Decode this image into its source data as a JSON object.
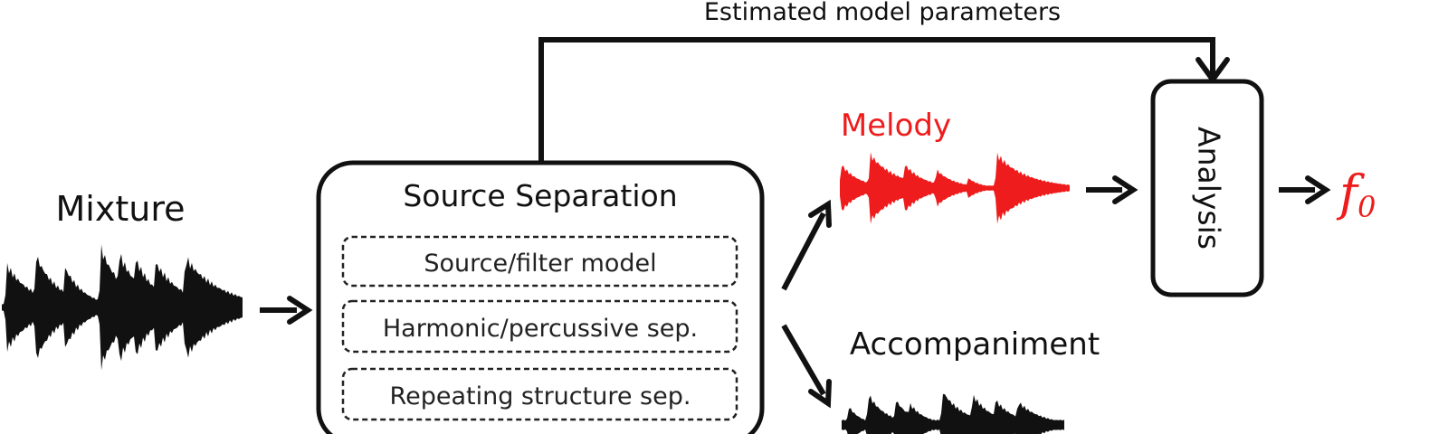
{
  "labels": {
    "estimated_params": "Estimated model parameters",
    "mixture": "Mixture",
    "source_separation": "Source Separation",
    "methods": [
      "Source/filter model",
      "Harmonic/percussive sep.",
      "Repeating structure sep."
    ],
    "melody": "Melody",
    "accompaniment": "Accompaniment",
    "analysis": "Analysis",
    "output_symbol": "f",
    "output_subscript": "0"
  },
  "colors": {
    "ink": "#111111",
    "melody": "#ee1c1c",
    "background": "#ffffff"
  }
}
